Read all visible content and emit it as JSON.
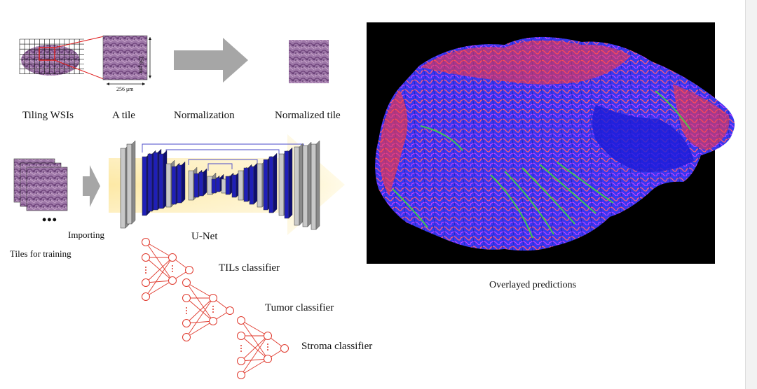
{
  "labels": {
    "tiling": "Tiling WSIs",
    "tile": "A tile",
    "normalization": "Normalization",
    "normalized_tile": "Normalized tile",
    "tile_width": "256 μm",
    "tile_height": "256 μm",
    "tiles_for_training": "Tiles for training",
    "importing": "Importing",
    "unet": "U-Net",
    "ellipsis": "•••",
    "tils_classifier": "TILs classifier",
    "tumor_classifier": "Tumor classifier",
    "stroma_classifier": "Stroma classifier",
    "overlayed_predictions": "Overlayed predictions"
  },
  "colors": {
    "tissue": "#9b6b9e",
    "tissue_dark": "#6e4a7a",
    "arrow_gray": "#a6a6a6",
    "unet_blue": "#1f1fb8",
    "unet_gray": "#c8c8c8",
    "unet_glow": "#fbe7a9",
    "classifier_red": "#e03a2e",
    "pred_tumor": "#ff3b3b",
    "pred_tils": "#3a3aff",
    "pred_stroma": "#3cdc3c"
  }
}
